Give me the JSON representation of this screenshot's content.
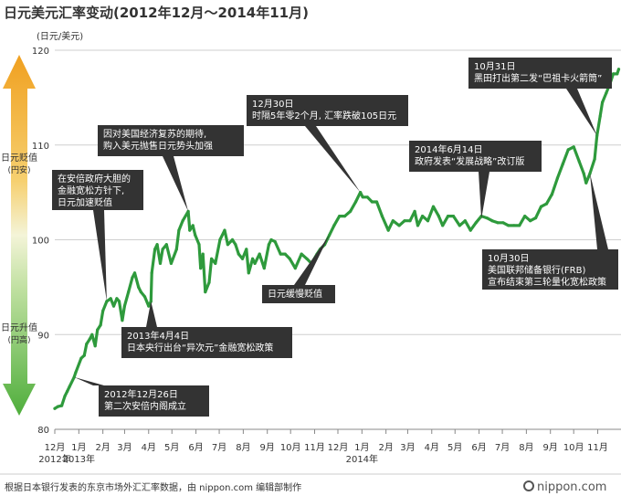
{
  "page": {
    "title": "日元美元汇率变动(2012年12月～2014年11月)",
    "source": "根据日本银行发表的东京市场外汇汇率数据，由 nippon.com 编辑部制作",
    "logo": "nippon.com"
  },
  "chart_data": {
    "type": "line",
    "title": "日元美元汇率变动(2012年12月～2014年11月)",
    "ylabel": "(日元/美元)",
    "ylim": [
      80,
      120
    ],
    "yticks": [
      "80",
      "90",
      "100",
      "110",
      "120"
    ],
    "grid": true,
    "x_ticks": [
      {
        "label": "12月",
        "year": "2012年"
      },
      {
        "label": "1月",
        "year": "2013年"
      },
      {
        "label": "2月",
        "year": ""
      },
      {
        "label": "3月",
        "year": ""
      },
      {
        "label": "4月",
        "year": ""
      },
      {
        "label": "5月",
        "year": ""
      },
      {
        "label": "6月",
        "year": ""
      },
      {
        "label": "7月",
        "year": ""
      },
      {
        "label": "8月",
        "year": ""
      },
      {
        "label": "9月",
        "year": ""
      },
      {
        "label": "10月",
        "year": ""
      },
      {
        "label": "11月",
        "year": ""
      },
      {
        "label": "12月",
        "year": ""
      },
      {
        "label": "1月",
        "year": "2014年"
      },
      {
        "label": "2月",
        "year": ""
      },
      {
        "label": "3月",
        "year": ""
      },
      {
        "label": "4月",
        "year": ""
      },
      {
        "label": "5月",
        "year": ""
      },
      {
        "label": "6月",
        "year": ""
      },
      {
        "label": "7月",
        "year": ""
      },
      {
        "label": "8月",
        "year": ""
      },
      {
        "label": "9月",
        "year": ""
      },
      {
        "label": "10月",
        "year": ""
      },
      {
        "label": "11月",
        "year": ""
      }
    ],
    "series": [
      {
        "color": "#2e9a3c",
        "points": [
          [
            "2012-12-01",
            82.2
          ],
          [
            "2012-12-05",
            82.4
          ],
          [
            "2012-12-10",
            82.5
          ],
          [
            "2012-12-14",
            83.5
          ],
          [
            "2012-12-17",
            84.0
          ],
          [
            "2012-12-20",
            84.5
          ],
          [
            "2012-12-26",
            85.5
          ],
          [
            "2012-12-28",
            86.0
          ],
          [
            "2013-01-04",
            87.5
          ],
          [
            "2013-01-08",
            87.8
          ],
          [
            "2013-01-11",
            89.0
          ],
          [
            "2013-01-15",
            89.5
          ],
          [
            "2013-01-18",
            90.0
          ],
          [
            "2013-01-22",
            88.8
          ],
          [
            "2013-01-25",
            90.5
          ],
          [
            "2013-01-29",
            91.0
          ],
          [
            "2013-02-01",
            92.5
          ],
          [
            "2013-02-06",
            93.5
          ],
          [
            "2013-02-11",
            93.8
          ],
          [
            "2013-02-15",
            93.0
          ],
          [
            "2013-02-19",
            93.8
          ],
          [
            "2013-02-22",
            93.5
          ],
          [
            "2013-02-26",
            91.5
          ],
          [
            "2013-03-01",
            93.0
          ],
          [
            "2013-03-06",
            94.5
          ],
          [
            "2013-03-11",
            96.0
          ],
          [
            "2013-03-14",
            96.5
          ],
          [
            "2013-03-19",
            95.0
          ],
          [
            "2013-03-22",
            94.5
          ],
          [
            "2013-03-27",
            94.0
          ],
          [
            "2013-04-01",
            93.0
          ],
          [
            "2013-04-04",
            93.5
          ],
          [
            "2013-04-05",
            96.5
          ],
          [
            "2013-04-09",
            99.0
          ],
          [
            "2013-04-12",
            99.5
          ],
          [
            "2013-04-16",
            97.5
          ],
          [
            "2013-04-19",
            99.0
          ],
          [
            "2013-04-24",
            99.5
          ],
          [
            "2013-04-30",
            97.5
          ],
          [
            "2013-05-07",
            99.0
          ],
          [
            "2013-05-10",
            101.0
          ],
          [
            "2013-05-15",
            102.0
          ],
          [
            "2013-05-22",
            103.0
          ],
          [
            "2013-05-24",
            101.0
          ],
          [
            "2013-05-28",
            101.5
          ],
          [
            "2013-05-31",
            100.5
          ],
          [
            "2013-06-05",
            99.5
          ],
          [
            "2013-06-07",
            97.0
          ],
          [
            "2013-06-10",
            98.5
          ],
          [
            "2013-06-13",
            94.5
          ],
          [
            "2013-06-18",
            95.5
          ],
          [
            "2013-06-21",
            98.0
          ],
          [
            "2013-06-26",
            97.5
          ],
          [
            "2013-07-02",
            100.0
          ],
          [
            "2013-07-08",
            101.0
          ],
          [
            "2013-07-12",
            99.5
          ],
          [
            "2013-07-18",
            100.0
          ],
          [
            "2013-07-22",
            99.5
          ],
          [
            "2013-07-26",
            98.5
          ],
          [
            "2013-07-31",
            98.0
          ],
          [
            "2013-08-05",
            99.0
          ],
          [
            "2013-08-08",
            96.5
          ],
          [
            "2013-08-13",
            98.0
          ],
          [
            "2013-08-16",
            97.5
          ],
          [
            "2013-08-22",
            98.5
          ],
          [
            "2013-08-28",
            97.0
          ],
          [
            "2013-09-03",
            99.5
          ],
          [
            "2013-09-06",
            100.0
          ],
          [
            "2013-09-11",
            99.8
          ],
          [
            "2013-09-18",
            98.5
          ],
          [
            "2013-09-24",
            98.5
          ],
          [
            "2013-09-30",
            98.0
          ],
          [
            "2013-10-07",
            97.0
          ],
          [
            "2013-10-15",
            98.5
          ],
          [
            "2013-10-22",
            98.0
          ],
          [
            "2013-10-28",
            97.5
          ],
          [
            "2013-11-04",
            98.5
          ],
          [
            "2013-11-08",
            99.0
          ],
          [
            "2013-11-14",
            99.5
          ],
          [
            "2013-11-20",
            100.5
          ],
          [
            "2013-11-26",
            101.5
          ],
          [
            "2013-12-03",
            102.5
          ],
          [
            "2013-12-10",
            102.5
          ],
          [
            "2013-12-17",
            103.0
          ],
          [
            "2013-12-24",
            104.0
          ],
          [
            "2013-12-30",
            105.0
          ],
          [
            "2014-01-02",
            104.5
          ],
          [
            "2014-01-08",
            104.5
          ],
          [
            "2014-01-14",
            104.0
          ],
          [
            "2014-01-20",
            104.0
          ],
          [
            "2014-01-27",
            102.5
          ],
          [
            "2014-02-04",
            101.0
          ],
          [
            "2014-02-10",
            102.0
          ],
          [
            "2014-02-18",
            101.5
          ],
          [
            "2014-02-25",
            102.0
          ],
          [
            "2014-03-04",
            102.0
          ],
          [
            "2014-03-10",
            103.0
          ],
          [
            "2014-03-14",
            101.5
          ],
          [
            "2014-03-20",
            102.5
          ],
          [
            "2014-03-27",
            102.0
          ],
          [
            "2014-04-03",
            103.5
          ],
          [
            "2014-04-10",
            102.5
          ],
          [
            "2014-04-15",
            101.5
          ],
          [
            "2014-04-22",
            102.5
          ],
          [
            "2014-04-29",
            102.5
          ],
          [
            "2014-05-07",
            101.5
          ],
          [
            "2014-05-14",
            102.0
          ],
          [
            "2014-05-21",
            101.0
          ],
          [
            "2014-05-28",
            101.8
          ],
          [
            "2014-06-04",
            102.5
          ],
          [
            "2014-06-11",
            102.3
          ],
          [
            "2014-06-18",
            102.0
          ],
          [
            "2014-06-25",
            101.8
          ],
          [
            "2014-07-02",
            101.8
          ],
          [
            "2014-07-09",
            101.5
          ],
          [
            "2014-07-16",
            101.5
          ],
          [
            "2014-07-23",
            101.5
          ],
          [
            "2014-07-30",
            102.5
          ],
          [
            "2014-08-06",
            102.0
          ],
          [
            "2014-08-13",
            102.3
          ],
          [
            "2014-08-20",
            103.5
          ],
          [
            "2014-08-27",
            103.8
          ],
          [
            "2014-09-03",
            104.8
          ],
          [
            "2014-09-10",
            106.5
          ],
          [
            "2014-09-17",
            108.0
          ],
          [
            "2014-09-24",
            109.5
          ],
          [
            "2014-10-01",
            109.8
          ],
          [
            "2014-10-08",
            108.3
          ],
          [
            "2014-10-14",
            107.0
          ],
          [
            "2014-10-17",
            106.0
          ],
          [
            "2014-10-22",
            107.0
          ],
          [
            "2014-10-28",
            108.5
          ],
          [
            "2014-10-31",
            111.0
          ],
          [
            "2014-11-04",
            113.0
          ],
          [
            "2014-11-07",
            114.5
          ],
          [
            "2014-11-12",
            115.5
          ],
          [
            "2014-11-17",
            116.5
          ],
          [
            "2014-11-21",
            117.5
          ],
          [
            "2014-11-26",
            117.5
          ],
          [
            "2014-11-28",
            118.0
          ]
        ]
      }
    ],
    "side_labels": {
      "top": {
        "line1": "日元贬值",
        "line2": "(円安)"
      },
      "bottom": {
        "line1": "日元升值",
        "line2": "(円高)"
      }
    },
    "annotations": [
      {
        "lines": [
          "10月31日",
          "黑田打出第二发“巴祖卡火箭筒”"
        ]
      },
      {
        "lines": [
          "12月30日",
          "时隔5年零2个月, 汇率跌破105日元"
        ]
      },
      {
        "lines": [
          "因对美国经济复苏的期待,",
          "购入美元抛售日元势头加强"
        ]
      },
      {
        "lines": [
          "2014年6月14日",
          "政府发表“发展战略”改订版"
        ]
      },
      {
        "lines": [
          "在安倍政府大胆的",
          "金融宽松方针下,",
          "日元加速贬值"
        ]
      },
      {
        "lines": [
          "10月30日",
          "美国联邦储备银行(FRB)",
          "宣布结束第三轮量化宽松政策"
        ]
      },
      {
        "lines": [
          "日元缓慢贬值"
        ]
      },
      {
        "lines": [
          "2013年4月4日",
          "日本央行出台“异次元”金融宽松政策"
        ]
      },
      {
        "lines": [
          "2012年12月26日",
          "第二次安倍内阁成立"
        ]
      }
    ]
  }
}
